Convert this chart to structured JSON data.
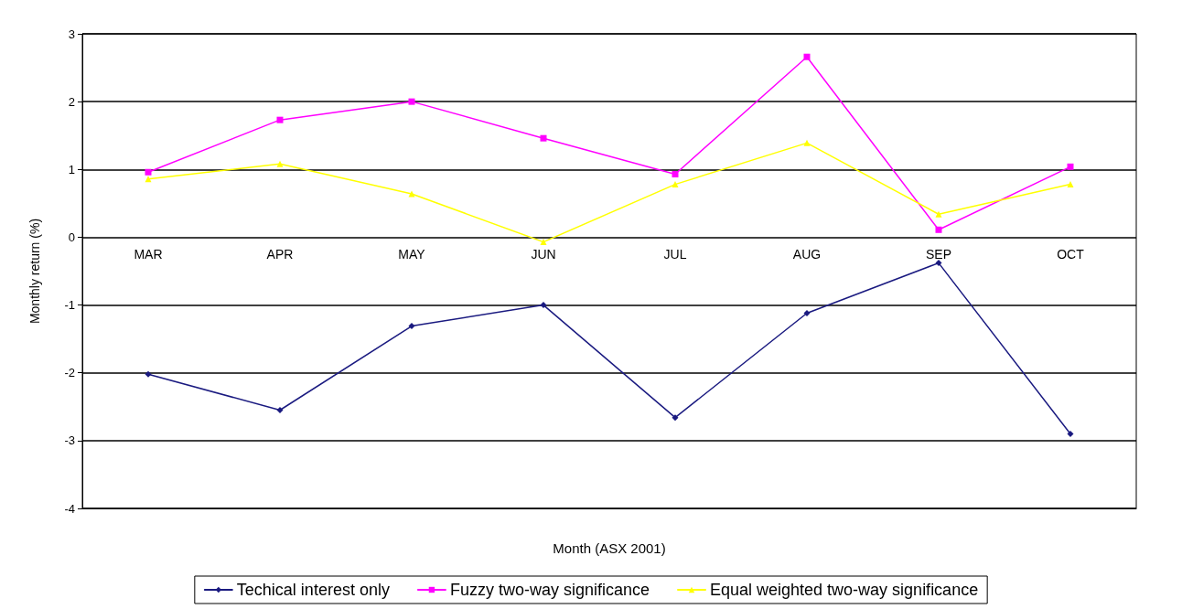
{
  "chart_data": {
    "type": "line",
    "xlabel": "Month (ASX 2001)",
    "ylabel": "Monthly return (%)",
    "categories": [
      "MAR",
      "APR",
      "MAY",
      "JUN",
      "JUL",
      "AUG",
      "SEP",
      "OCT"
    ],
    "series": [
      {
        "name": "Techical interest only",
        "color": "#1a1a80",
        "marker": "diamond",
        "values": [
          -2.02,
          -2.55,
          -1.31,
          -1.0,
          -2.66,
          -1.12,
          -0.38,
          -2.9
        ]
      },
      {
        "name": "Fuzzy two-way significance",
        "color": "#ff00ff",
        "marker": "square",
        "values": [
          0.96,
          1.73,
          2.0,
          1.46,
          0.93,
          2.66,
          0.11,
          1.04
        ]
      },
      {
        "name": "Equal weighted two-way significance",
        "color": "#ffff00",
        "marker": "triangle",
        "values": [
          0.86,
          1.08,
          0.64,
          -0.07,
          0.78,
          1.39,
          0.34,
          0.78
        ]
      }
    ],
    "ylim": [
      -4,
      3
    ],
    "yticks": [
      -4,
      -3,
      -2,
      -1,
      0,
      1,
      2,
      3
    ],
    "grid": "y",
    "legend": "bottom",
    "line_style": "solid"
  }
}
